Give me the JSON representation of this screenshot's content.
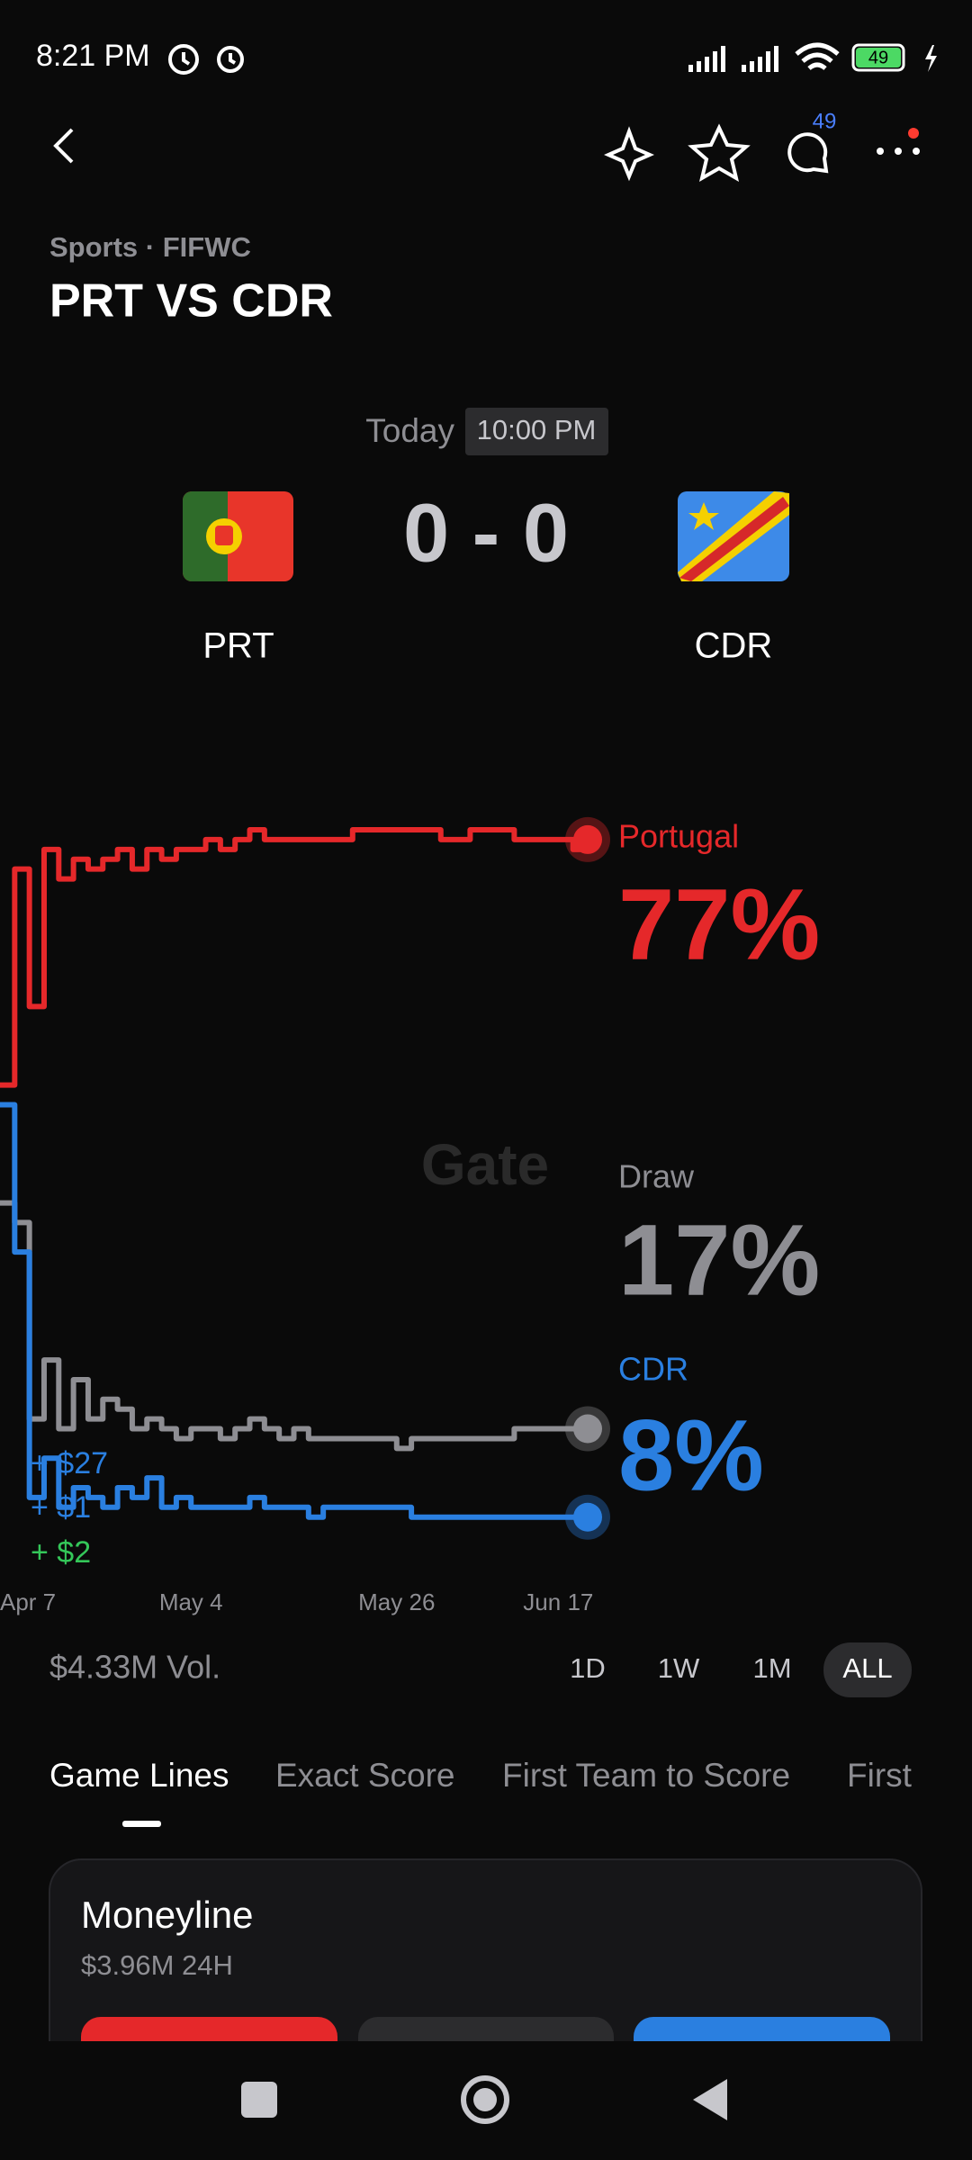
{
  "status_bar": {
    "time": "8:21 PM",
    "battery": "49"
  },
  "header": {
    "comment_count": "49"
  },
  "event": {
    "breadcrumb": "Sports · FIFWC",
    "title": "PRT VS CDR",
    "day": "Today",
    "time": "10:00 PM",
    "score": "0 - 0",
    "home": "PRT",
    "away": "CDR"
  },
  "chart_data": {
    "type": "line",
    "watermark": "Gate",
    "categories": [
      "Apr 7",
      null,
      null,
      null,
      null,
      null,
      null,
      null,
      null,
      null,
      null,
      null,
      null,
      "May 4",
      null,
      null,
      null,
      null,
      null,
      null,
      null,
      null,
      null,
      null,
      null,
      null,
      null,
      "May 26",
      null,
      null,
      null,
      null,
      null,
      null,
      null,
      null,
      null,
      null,
      "Jun 17",
      null,
      null
    ],
    "ylim": [
      0,
      100
    ],
    "series": [
      {
        "name": "Portugal",
        "color": "#e5282a",
        "last_label": "77%",
        "values": [
          52,
          74,
          60,
          76,
          73,
          75,
          74,
          75,
          76,
          74,
          76,
          75,
          76,
          76,
          77,
          76,
          77,
          78,
          77,
          77,
          77,
          77,
          77,
          77,
          78,
          78,
          78,
          78,
          78,
          78,
          77,
          77,
          78,
          78,
          78,
          77,
          77,
          77,
          77,
          76,
          77
        ]
      },
      {
        "name": "Draw",
        "color": "#8e8e93",
        "last_label": "17%",
        "values": [
          40,
          38,
          18,
          24,
          17,
          22,
          18,
          20,
          19,
          17,
          18,
          17,
          16,
          17,
          17,
          16,
          17,
          18,
          17,
          16,
          17,
          16,
          16,
          16,
          16,
          16,
          16,
          15,
          16,
          16,
          16,
          16,
          16,
          16,
          16,
          17,
          17,
          17,
          17,
          17,
          17
        ]
      },
      {
        "name": "CDR",
        "color": "#2a7fe0",
        "last_label": "8%",
        "values": [
          50,
          35,
          10,
          14,
          9,
          11,
          10,
          9,
          11,
          10,
          12,
          9,
          10,
          9,
          9,
          9,
          9,
          10,
          9,
          9,
          9,
          8,
          9,
          9,
          9,
          9,
          9,
          9,
          8,
          8,
          8,
          8,
          8,
          8,
          8,
          8,
          8,
          8,
          8,
          8,
          8
        ]
      }
    ],
    "annotations": [
      "+ $27",
      "+ $1",
      "+ $2"
    ]
  },
  "volume": "$4.33M Vol.",
  "ranges": [
    "1D",
    "1W",
    "1M",
    "ALL"
  ],
  "tabs": [
    "Game Lines",
    "Exact Score",
    "First Team to Score",
    "First"
  ],
  "market": {
    "title": "Moneyline",
    "volume": "$3.96M 24H"
  }
}
